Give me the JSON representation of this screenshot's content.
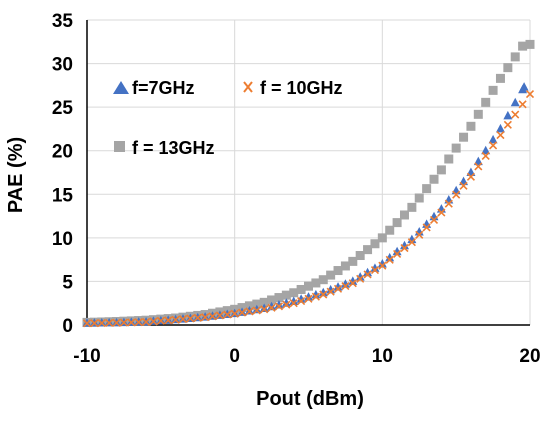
{
  "chart_data": {
    "type": "scatter",
    "title": "",
    "xlabel": "Pout (dBm)",
    "ylabel": "PAE (%)",
    "xlim": [
      -10,
      20
    ],
    "ylim": [
      0,
      35
    ],
    "x_ticks": [
      "-10",
      "0",
      "10",
      "20"
    ],
    "y_ticks": [
      "0",
      "5",
      "10",
      "15",
      "20",
      "25",
      "30",
      "35"
    ],
    "grid": true,
    "legend_position": "inside-top-left",
    "series": [
      {
        "name": "f=7GHz",
        "marker": "triangle",
        "color": "#4472C4",
        "x": [
          -10,
          -8,
          -6,
          -4,
          -2,
          0,
          2,
          4,
          6,
          8,
          10,
          12,
          14,
          16,
          18,
          19.6
        ],
        "y": [
          0.2,
          0.25,
          0.35,
          0.6,
          0.9,
          1.3,
          1.9,
          2.7,
          3.7,
          5.0,
          7.0,
          9.8,
          13.3,
          17.5,
          22.5,
          27.3
        ]
      },
      {
        "name": "f = 10GHz",
        "marker": "x",
        "color": "#ED7D31",
        "x": [
          -10,
          -8,
          -6,
          -4,
          -2,
          0,
          2,
          4,
          6,
          8,
          10,
          12,
          14,
          16,
          18,
          20
        ],
        "y": [
          0.2,
          0.25,
          0.35,
          0.6,
          0.9,
          1.3,
          1.8,
          2.5,
          3.5,
          4.8,
          6.8,
          9.5,
          12.9,
          17.0,
          21.8,
          26.5
        ]
      },
      {
        "name": "f = 13GHz",
        "marker": "square",
        "color": "#A5A5A5",
        "x": [
          -10,
          -8,
          -6,
          -4,
          -2,
          0,
          2,
          4,
          6,
          8,
          10,
          12,
          14,
          16,
          18,
          19.5,
          20
        ],
        "y": [
          0.3,
          0.4,
          0.55,
          0.8,
          1.2,
          1.8,
          2.6,
          3.7,
          5.2,
          7.3,
          10.0,
          13.5,
          17.8,
          22.8,
          28.3,
          32.0,
          32.2
        ]
      }
    ]
  }
}
